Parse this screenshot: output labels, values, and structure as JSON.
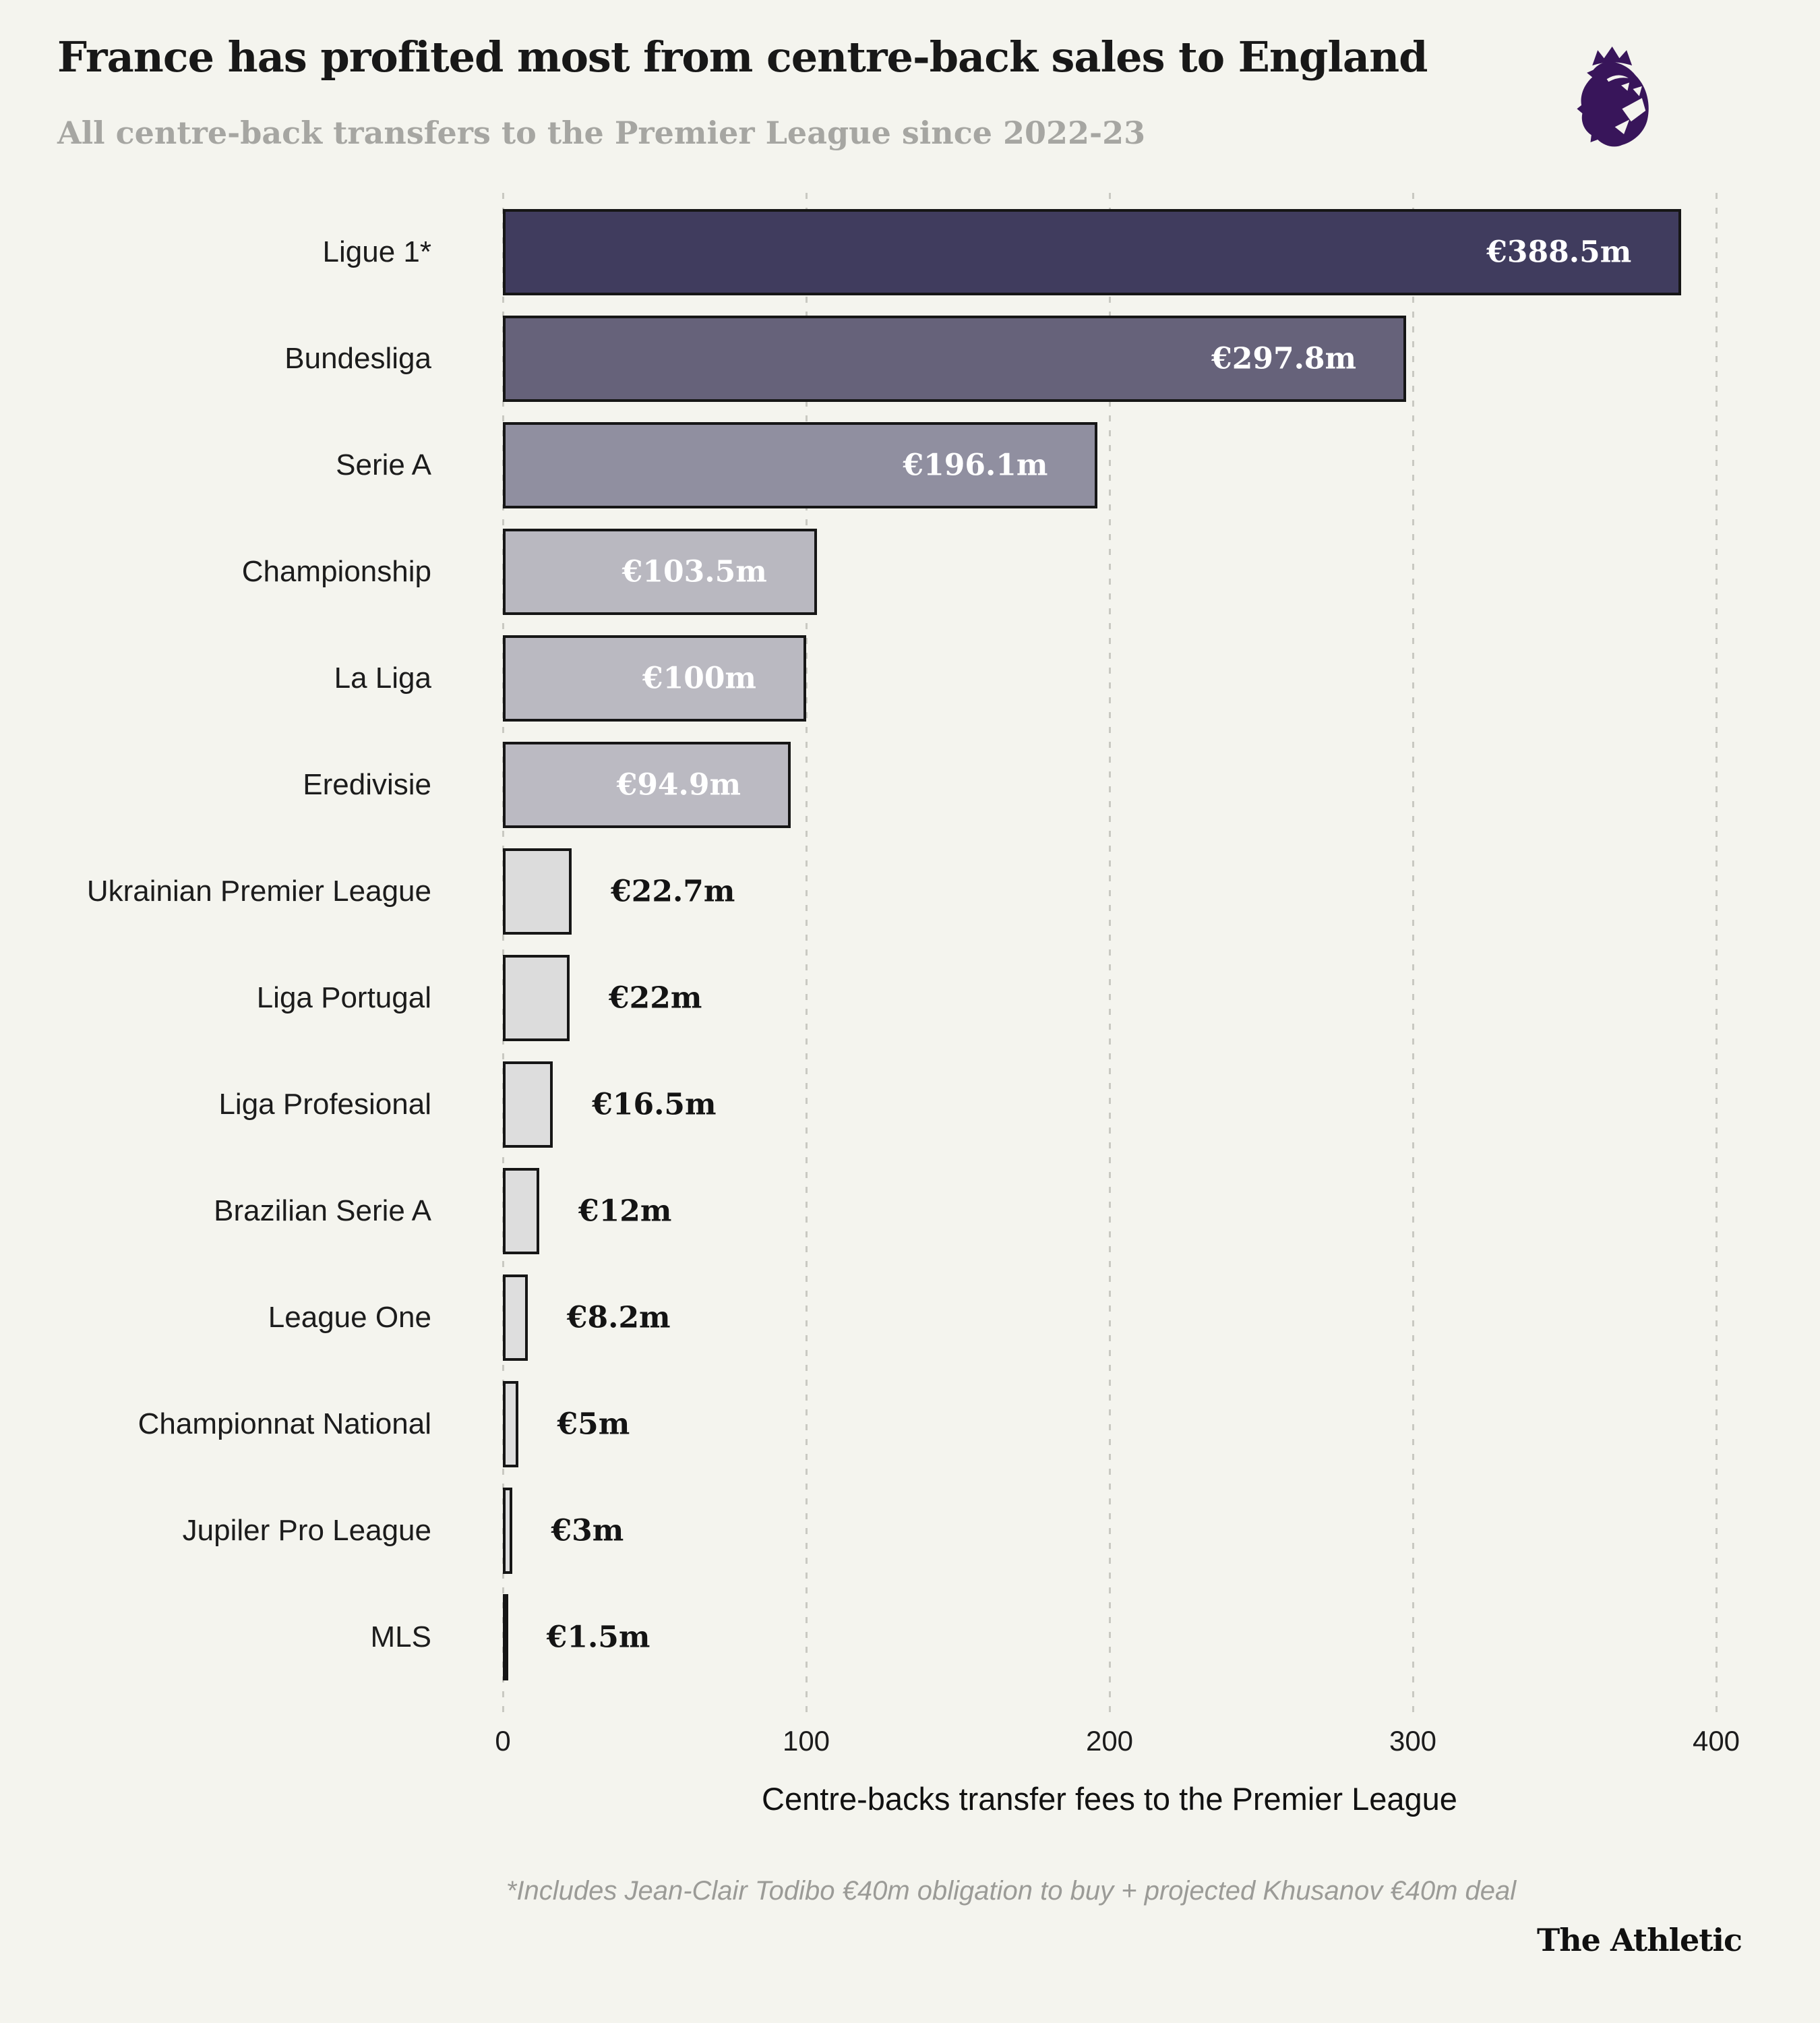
{
  "header": {
    "title": "France has profited most from centre-back sales to England",
    "subtitle": "All centre-back transfers to the Premier League since 2022-23"
  },
  "colors": {
    "background": "#f4f4ee",
    "bar_border": "#161616",
    "gridline": "#c9c9c2",
    "title": "#181818",
    "subtitle": "#a6a6a2",
    "value_inside": "#ffffff",
    "value_outside": "#141414",
    "footnote": "#9b9b97",
    "logo_purple": "#38155a"
  },
  "chart_data": {
    "type": "bar",
    "orientation": "horizontal",
    "title": "France has profited most from centre-back sales to England",
    "subtitle": "All centre-back transfers to the Premier League since 2022-23",
    "xlabel": "Centre-backs transfer fees to the Premier League",
    "xlim": [
      0,
      400
    ],
    "x_ticks": [
      "0",
      "100",
      "200",
      "300",
      "400"
    ],
    "grid": "dotted-vertical",
    "legend": "none",
    "bars": [
      {
        "category": "Ligue 1*",
        "value": 388.5,
        "label": "€388.5m",
        "color": "#403c5e",
        "label_inside": true
      },
      {
        "category": "Bundesliga",
        "value": 297.8,
        "label": "€297.8m",
        "color": "#66627a",
        "label_inside": true
      },
      {
        "category": "Serie A",
        "value": 196.1,
        "label": "€196.1m",
        "color": "#908fa0",
        "label_inside": true
      },
      {
        "category": "Championship",
        "value": 103.5,
        "label": "€103.5m",
        "color": "#b9b8c0",
        "label_inside": true
      },
      {
        "category": "La Liga",
        "value": 100,
        "label": "€100m",
        "color": "#bab9c1",
        "label_inside": true
      },
      {
        "category": "Eredivisie",
        "value": 94.9,
        "label": "€94.9m",
        "color": "#bbbac2",
        "label_inside": true
      },
      {
        "category": "Ukrainian Premier League",
        "value": 22.7,
        "label": "€22.7m",
        "color": "#dcdcdc",
        "label_inside": false
      },
      {
        "category": "Liga Portugal",
        "value": 22,
        "label": "€22m",
        "color": "#dcdcdc",
        "label_inside": false
      },
      {
        "category": "Liga Profesional",
        "value": 16.5,
        "label": "€16.5m",
        "color": "#dddddd",
        "label_inside": false
      },
      {
        "category": "Brazilian Serie A",
        "value": 12,
        "label": "€12m",
        "color": "#dddddd",
        "label_inside": false
      },
      {
        "category": "League One",
        "value": 8.2,
        "label": "€8.2m",
        "color": "#dedede",
        "label_inside": false
      },
      {
        "category": "Championnat National",
        "value": 5,
        "label": "€5m",
        "color": "#dedede",
        "label_inside": false
      },
      {
        "category": "Jupiler Pro League",
        "value": 3,
        "label": "€3m",
        "color": "#dfdfdf",
        "label_inside": false
      },
      {
        "category": "MLS",
        "value": 1.5,
        "label": "€1.5m",
        "color": "#dfdfdf",
        "label_inside": false
      }
    ]
  },
  "footnote": "*Includes Jean-Clair Todibo €40m obligation to buy + projected Khusanov €40m deal",
  "attribution": "The Athletic"
}
